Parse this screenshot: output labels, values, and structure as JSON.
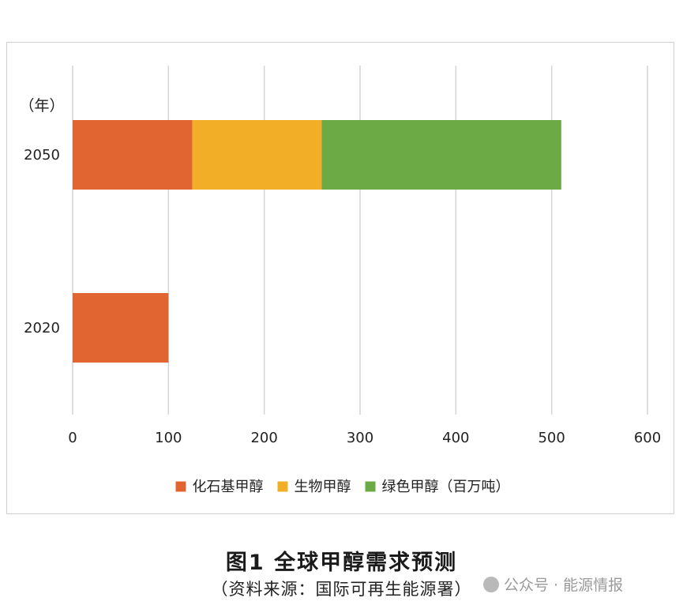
{
  "colors": {
    "fossil": "#E06530",
    "bio": "#F3AE27",
    "green": "#6BAA45",
    "grid": "#d4d4d4",
    "frame": "#cfcfcf"
  },
  "chart_data": {
    "type": "bar",
    "orientation": "horizontal",
    "stacked": true,
    "y_unit_label": "（年）",
    "categories": [
      "2050",
      "2020"
    ],
    "series": [
      {
        "name": "化石基甲醇",
        "values": [
          125,
          100
        ]
      },
      {
        "name": "生物甲醇",
        "values": [
          135,
          0
        ]
      },
      {
        "name": "绿色甲醇（百万吨）",
        "values": [
          250,
          0
        ]
      }
    ],
    "xlim": [
      0,
      600
    ],
    "x_ticks": [
      0,
      100,
      200,
      300,
      400,
      500,
      600
    ],
    "grid": "vertical",
    "legend_position": "bottom"
  },
  "caption": {
    "title": "图1 全球甲醇需求预测",
    "source": "（资料来源：国际可再生能源署）"
  },
  "watermark": {
    "text": "公众号 · 能源情报"
  }
}
